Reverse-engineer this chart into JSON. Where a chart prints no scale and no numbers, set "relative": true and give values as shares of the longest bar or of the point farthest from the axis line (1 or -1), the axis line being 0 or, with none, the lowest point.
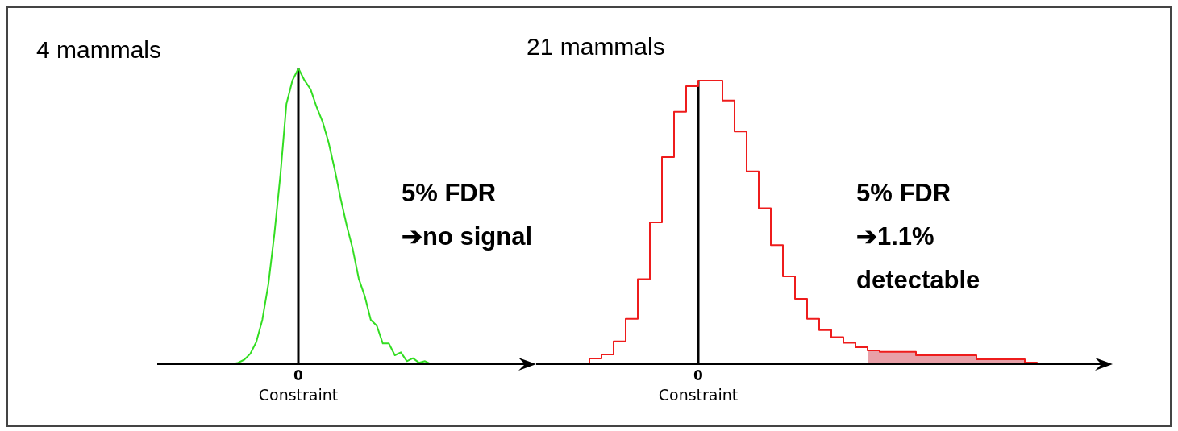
{
  "chart_data": [
    {
      "type": "line",
      "title": "4 mammals",
      "xlabel": "Constraint",
      "relative": true,
      "categories": [
        null,
        null,
        null,
        null,
        null,
        null,
        null,
        null,
        null,
        null,
        null,
        null,
        null,
        null,
        null,
        null,
        null,
        null,
        null,
        null,
        null,
        null,
        null,
        null,
        null,
        null,
        null,
        null,
        null,
        null,
        null,
        null,
        null,
        null,
        null
      ],
      "series": [
        {
          "color": "#33dd22",
          "values": [
            0,
            0.005,
            0.015,
            0.035,
            0.075,
            0.15,
            0.27,
            0.44,
            0.64,
            0.88,
            0.96,
            1,
            0.96,
            0.93,
            0.87,
            0.82,
            0.75,
            0.66,
            0.56,
            0.47,
            0.39,
            0.29,
            0.23,
            0.15,
            0.13,
            0.07,
            0.07,
            0.03,
            0.04,
            0.01,
            0.02,
            0.005,
            0.01,
            0,
            0
          ]
        }
      ],
      "annotations": [
        "5% FDR\n➔no signal",
        "0"
      ]
    },
    {
      "type": "step",
      "title": "21 mammals",
      "xlabel": "Constraint",
      "relative": true,
      "categories": [
        null,
        null,
        null,
        null,
        null,
        null,
        null,
        null,
        null,
        null,
        null,
        null,
        null,
        null,
        null,
        null,
        null,
        null,
        null,
        null,
        null,
        null,
        null,
        null,
        null,
        null,
        null,
        null,
        null,
        null,
        null,
        null,
        null,
        null,
        null,
        null,
        null,
        null,
        null
      ],
      "series": [
        {
          "color": "#ee1c1c",
          "values": [
            0,
            0.02,
            0.034,
            0.08,
            0.16,
            0.3,
            0.5,
            0.73,
            0.89,
            0.98,
            1,
            1,
            0.93,
            0.82,
            0.68,
            0.55,
            0.42,
            0.31,
            0.23,
            0.16,
            0.12,
            0.095,
            0.075,
            0.06,
            0.048,
            0.043,
            0.043,
            0.043,
            0.031,
            0.031,
            0.031,
            0.031,
            0.031,
            0.017,
            0.017,
            0.017,
            0.017,
            0.006,
            0
          ]
        }
      ],
      "annotations": [
        "5% FDR\n➔1.1%\ndetectable",
        "0"
      ]
    }
  ]
}
